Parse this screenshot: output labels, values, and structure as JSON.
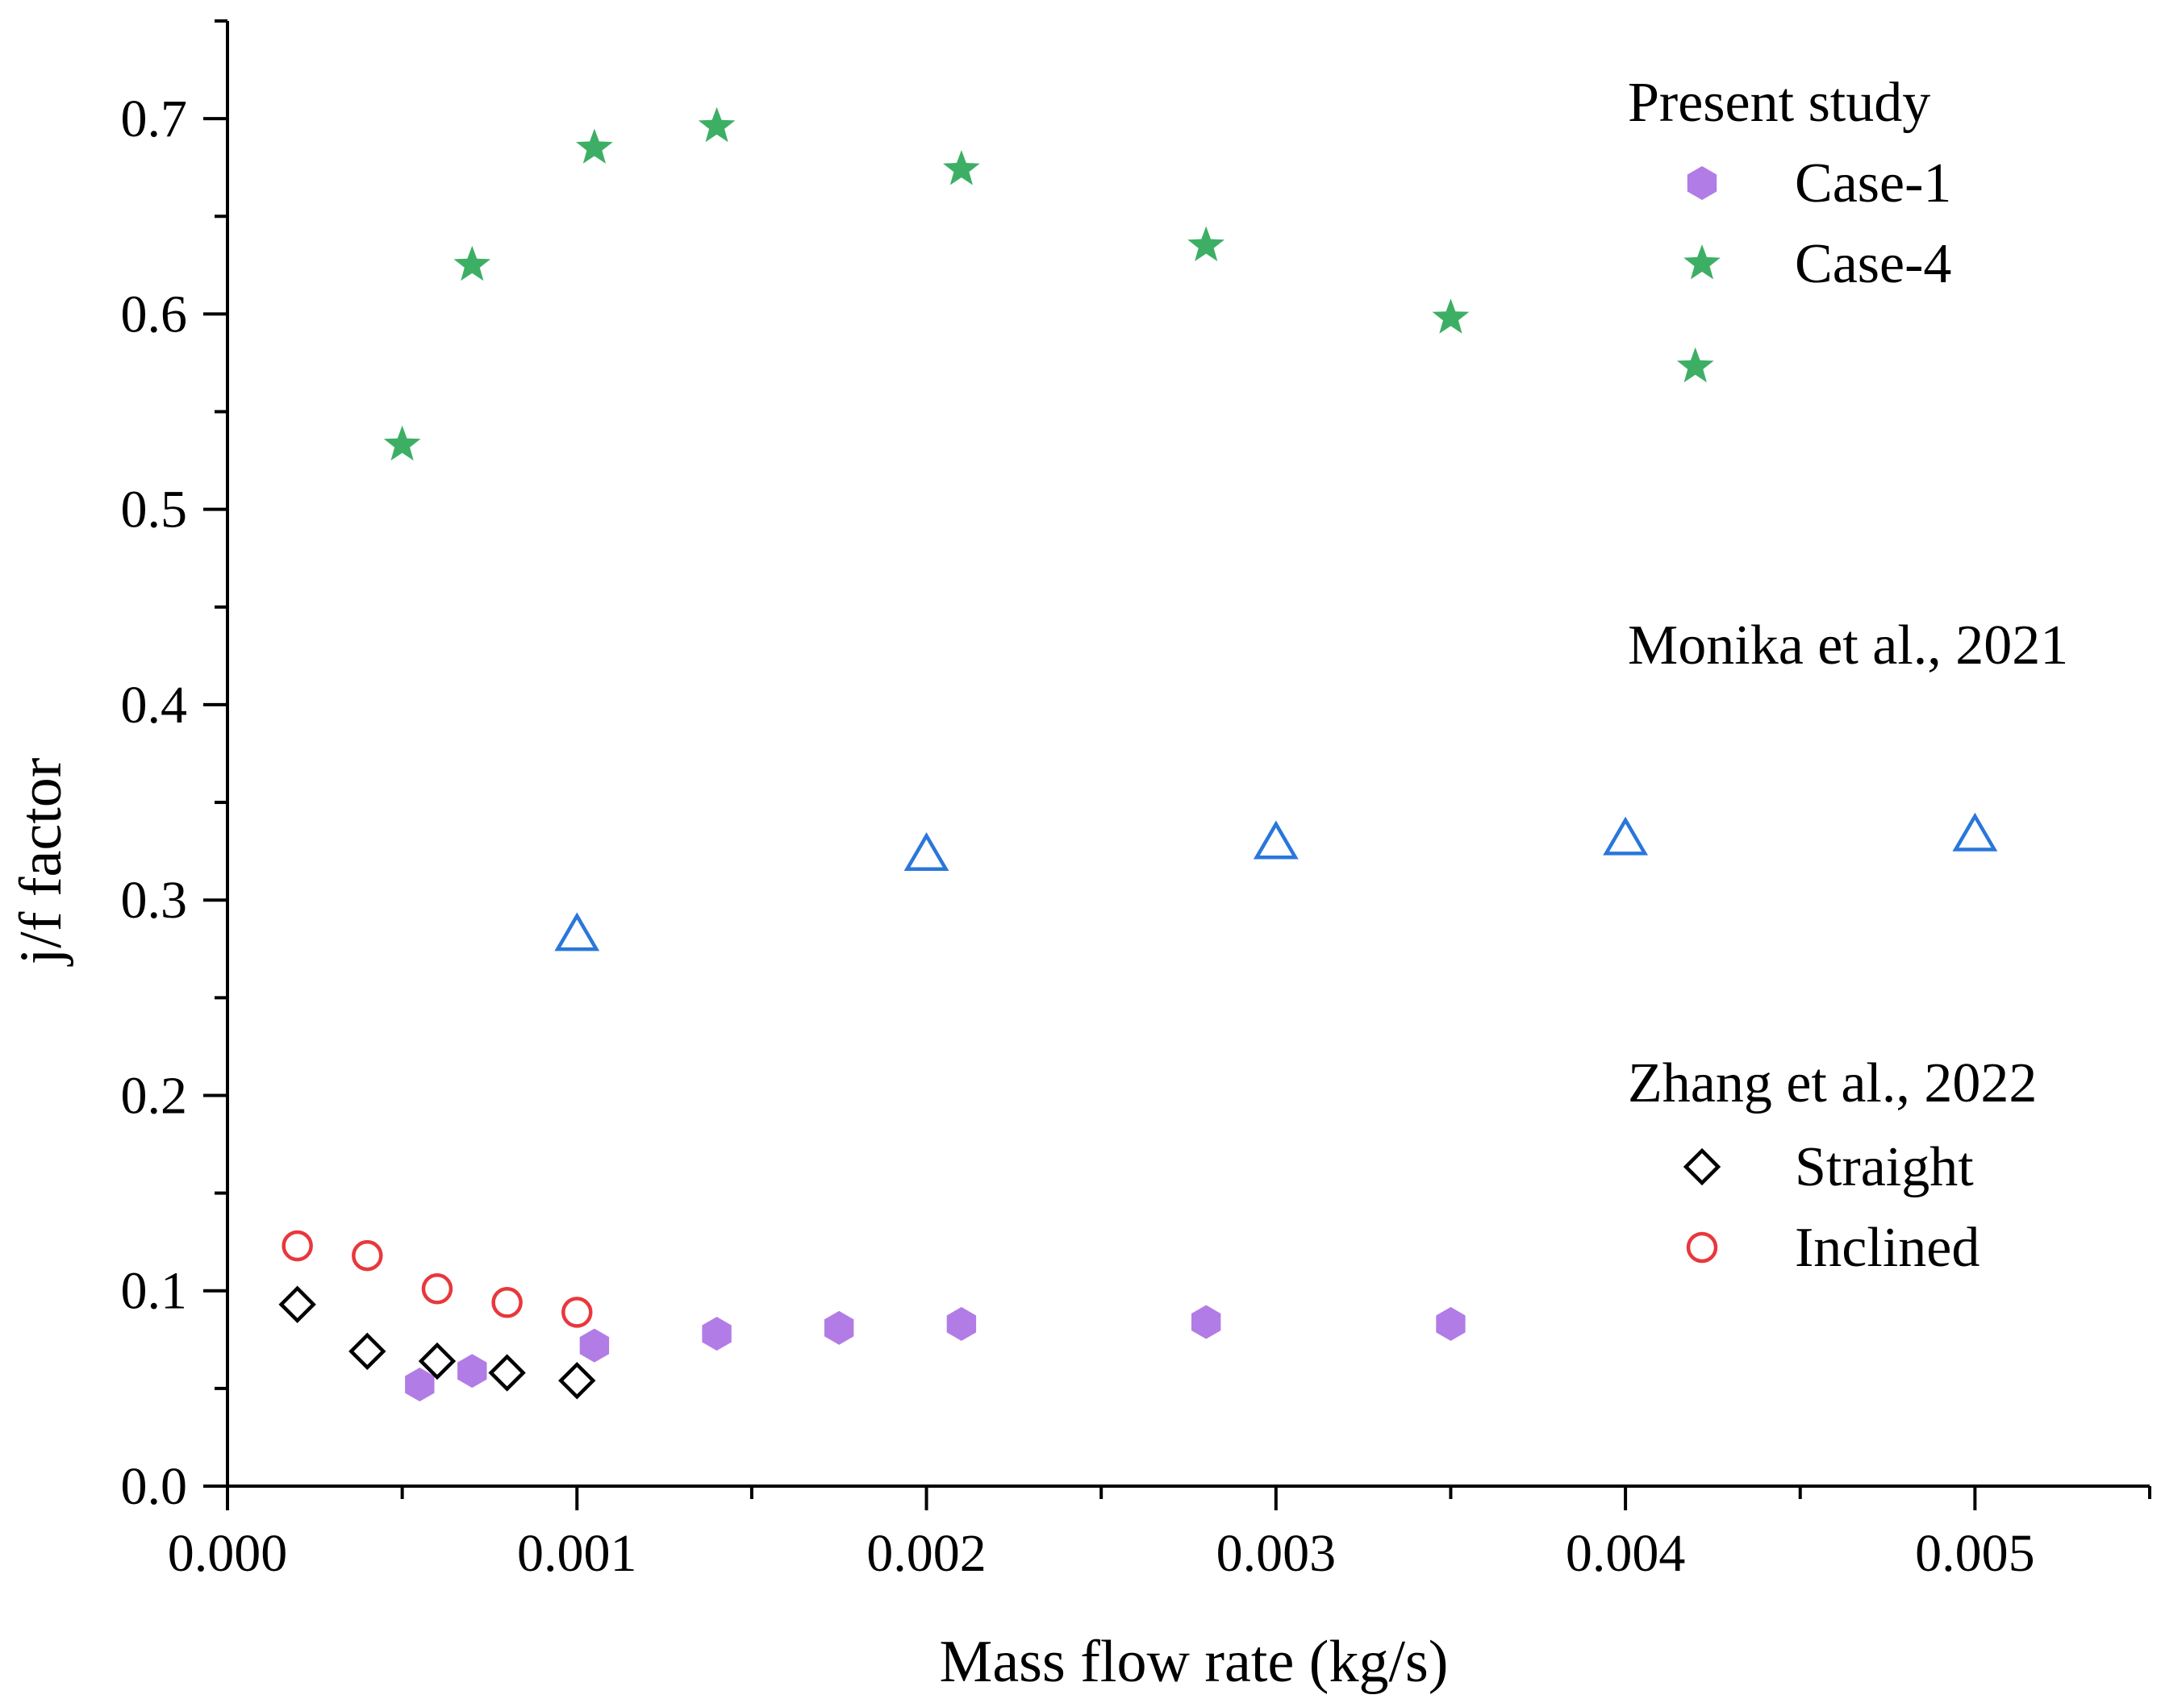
{
  "chart_data": {
    "type": "scatter",
    "xlabel": "Mass flow rate (kg/s)",
    "ylabel": "j/f factor",
    "xlim": [
      0.0,
      0.0055
    ],
    "ylim": [
      0.0,
      0.75
    ],
    "xticks": [
      {
        "value": 0.0,
        "label": "0.000"
      },
      {
        "value": 0.001,
        "label": "0.001"
      },
      {
        "value": 0.002,
        "label": "0.002"
      },
      {
        "value": 0.003,
        "label": "0.003"
      },
      {
        "value": 0.004,
        "label": "0.004"
      },
      {
        "value": 0.005,
        "label": "0.005"
      }
    ],
    "xminor": [
      0.0005,
      0.0015,
      0.0025,
      0.0035,
      0.0045,
      0.0055
    ],
    "yticks": [
      {
        "value": 0.0,
        "label": "0.0"
      },
      {
        "value": 0.1,
        "label": "0.1"
      },
      {
        "value": 0.2,
        "label": "0.2"
      },
      {
        "value": 0.3,
        "label": "0.3"
      },
      {
        "value": 0.4,
        "label": "0.4"
      },
      {
        "value": 0.5,
        "label": "0.5"
      },
      {
        "value": 0.6,
        "label": "0.6"
      },
      {
        "value": 0.7,
        "label": "0.7"
      }
    ],
    "yminor": [
      0.05,
      0.15,
      0.25,
      0.35,
      0.45,
      0.55,
      0.65,
      0.75
    ],
    "grid": false,
    "series": [
      {
        "name": "Case-1",
        "group": "Present study",
        "marker": "hexagon",
        "filled": true,
        "color": "#b27ce6",
        "x": [
          0.00055,
          0.0007,
          0.00105,
          0.0014,
          0.00175,
          0.0021,
          0.0028,
          0.0035
        ],
        "y": [
          0.052,
          0.059,
          0.072,
          0.078,
          0.081,
          0.083,
          0.084,
          0.083
        ]
      },
      {
        "name": "Case-4",
        "group": "Present study",
        "marker": "star",
        "filled": true,
        "color": "#3daf65",
        "x": [
          0.0005,
          0.0007,
          0.00105,
          0.0014,
          0.0021,
          0.0028,
          0.0035,
          0.0042
        ],
        "y": [
          0.533,
          0.625,
          0.685,
          0.696,
          0.674,
          0.635,
          0.598,
          0.573
        ]
      },
      {
        "name": "Monika et al., 2021",
        "group": "Monika et al., 2021",
        "marker": "triangle",
        "filled": false,
        "color": "#2a77db",
        "x": [
          0.001,
          0.002,
          0.003,
          0.004,
          0.005
        ],
        "y": [
          0.282,
          0.323,
          0.329,
          0.331,
          0.333
        ]
      },
      {
        "name": "Straight",
        "group": "Zhang et al., 2022",
        "marker": "diamond",
        "filled": false,
        "color": "#000000",
        "x": [
          0.0002,
          0.0004,
          0.0006,
          0.0008,
          0.001
        ],
        "y": [
          0.093,
          0.069,
          0.064,
          0.058,
          0.054
        ]
      },
      {
        "name": "Inclined",
        "group": "Zhang et al., 2022",
        "marker": "circle",
        "filled": false,
        "color": "#e8383d",
        "x": [
          0.0002,
          0.0004,
          0.0006,
          0.0008,
          0.001
        ],
        "y": [
          0.123,
          0.118,
          0.101,
          0.094,
          0.089
        ]
      }
    ],
    "legend": {
      "placement": "right",
      "present_title": "Present study",
      "present_items": [
        "Case-1",
        "Case-4"
      ],
      "monika_title": "Monika et al., 2021",
      "monika_point": {
        "x": 0.00423,
        "y": 0.39
      },
      "zhang_title": "Zhang et al., 2022",
      "zhang_items": [
        "Straight",
        "Inclined"
      ]
    }
  }
}
